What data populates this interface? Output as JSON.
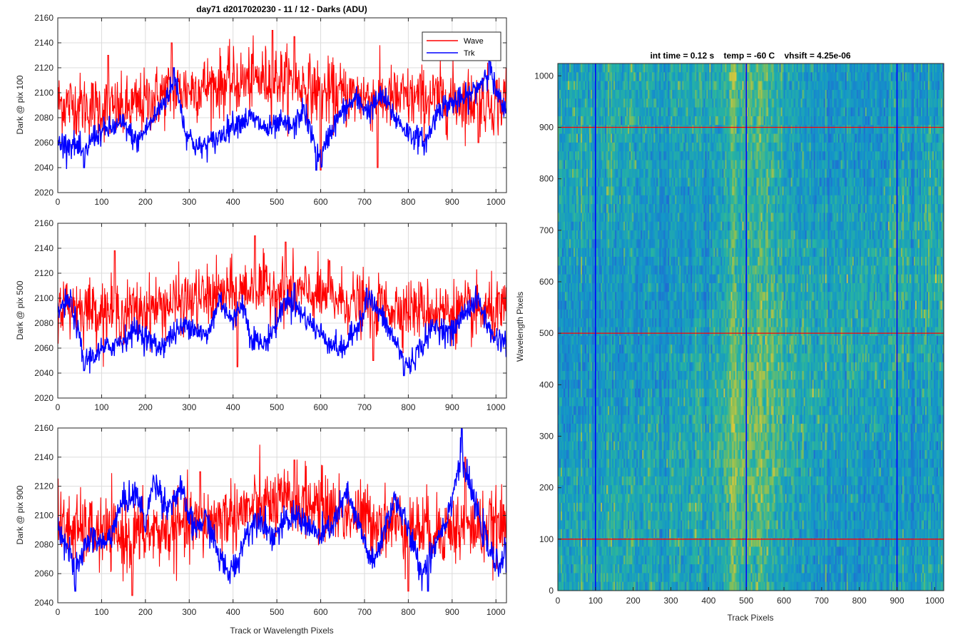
{
  "chart_data": [
    {
      "type": "line",
      "title": "day71 d2017020230 - 11 / 12 - Darks (ADU)",
      "xlabel": "",
      "ylabel": "Dark @ pix 100",
      "xlim": [
        0,
        1024
      ],
      "ylim": [
        2020,
        2160
      ],
      "xticks": [
        0,
        100,
        200,
        300,
        400,
        500,
        600,
        700,
        800,
        900,
        1000
      ],
      "yticks": [
        2020,
        2040,
        2060,
        2080,
        2100,
        2120,
        2140,
        2160
      ],
      "grid": true,
      "legend": {
        "position": "top-right",
        "entries": [
          "Wave",
          "Trk"
        ]
      },
      "series": [
        {
          "name": "Wave",
          "color": "#ff0000",
          "mean": 2100,
          "noise": 13,
          "trend": [
            [
              0,
              2092
            ],
            [
              150,
              2085
            ],
            [
              250,
              2100
            ],
            [
              350,
              2106
            ],
            [
              500,
              2112
            ],
            [
              600,
              2100
            ],
            [
              750,
              2095
            ],
            [
              900,
              2095
            ],
            [
              1024,
              2092
            ]
          ],
          "peaks": [
            [
              490,
              2150
            ],
            [
              540,
              2145
            ],
            [
              260,
              2140
            ],
            [
              1024,
              2120
            ],
            [
              115,
              2130
            ]
          ],
          "dips": [
            [
              600,
              2038
            ],
            [
              730,
              2040
            ],
            [
              960,
              2060
            ]
          ]
        },
        {
          "name": "Trk",
          "color": "#0000ff",
          "mean": 2075,
          "noise": 5,
          "trend": [
            [
              0,
              2060
            ],
            [
              40,
              2058
            ],
            [
              60,
              2050
            ],
            [
              80,
              2065
            ],
            [
              110,
              2070
            ],
            [
              150,
              2075
            ],
            [
              180,
              2060
            ],
            [
              220,
              2080
            ],
            [
              250,
              2098
            ],
            [
              270,
              2110
            ],
            [
              290,
              2070
            ],
            [
              320,
              2055
            ],
            [
              360,
              2062
            ],
            [
              400,
              2075
            ],
            [
              440,
              2080
            ],
            [
              480,
              2070
            ],
            [
              510,
              2075
            ],
            [
              540,
              2072
            ],
            [
              560,
              2088
            ],
            [
              580,
              2065
            ],
            [
              600,
              2045
            ],
            [
              620,
              2068
            ],
            [
              650,
              2085
            ],
            [
              680,
              2095
            ],
            [
              710,
              2085
            ],
            [
              740,
              2098
            ],
            [
              770,
              2080
            ],
            [
              800,
              2068
            ],
            [
              840,
              2060
            ],
            [
              870,
              2088
            ],
            [
              900,
              2092
            ],
            [
              930,
              2095
            ],
            [
              960,
              2105
            ],
            [
              985,
              2120
            ],
            [
              1000,
              2100
            ],
            [
              1024,
              2082
            ]
          ],
          "peaks": [
            [
              985,
              2130
            ],
            [
              265,
              2120
            ]
          ],
          "dips": [
            [
              590,
              2038
            ],
            [
              60,
              2040
            ]
          ]
        }
      ]
    },
    {
      "type": "line",
      "title": "",
      "xlabel": "",
      "ylabel": "Dark @ pix 500",
      "xlim": [
        0,
        1024
      ],
      "ylim": [
        2020,
        2160
      ],
      "xticks": [
        0,
        100,
        200,
        300,
        400,
        500,
        600,
        700,
        800,
        900,
        1000
      ],
      "yticks": [
        2020,
        2040,
        2060,
        2080,
        2100,
        2120,
        2140,
        2160
      ],
      "grid": true,
      "series": [
        {
          "name": "Wave",
          "color": "#ff0000",
          "mean": 2098,
          "noise": 12,
          "trend": [
            [
              0,
              2095
            ],
            [
              150,
              2088
            ],
            [
              300,
              2098
            ],
            [
              450,
              2108
            ],
            [
              550,
              2105
            ],
            [
              700,
              2095
            ],
            [
              850,
              2090
            ],
            [
              1024,
              2088
            ]
          ],
          "peaks": [
            [
              450,
              2150
            ],
            [
              520,
              2145
            ],
            [
              130,
              2138
            ],
            [
              620,
              2130
            ]
          ],
          "dips": [
            [
              410,
              2045
            ],
            [
              720,
              2050
            ]
          ]
        },
        {
          "name": "Trk",
          "color": "#0000ff",
          "mean": 2075,
          "noise": 5,
          "trend": [
            [
              0,
              2090
            ],
            [
              30,
              2098
            ],
            [
              60,
              2050
            ],
            [
              100,
              2058
            ],
            [
              140,
              2065
            ],
            [
              180,
              2075
            ],
            [
              230,
              2060
            ],
            [
              260,
              2070
            ],
            [
              300,
              2080
            ],
            [
              340,
              2068
            ],
            [
              370,
              2100
            ],
            [
              400,
              2080
            ],
            [
              420,
              2098
            ],
            [
              440,
              2070
            ],
            [
              470,
              2062
            ],
            [
              500,
              2080
            ],
            [
              520,
              2100
            ],
            [
              550,
              2090
            ],
            [
              590,
              2075
            ],
            [
              620,
              2065
            ],
            [
              650,
              2058
            ],
            [
              680,
              2075
            ],
            [
              710,
              2100
            ],
            [
              740,
              2085
            ],
            [
              770,
              2065
            ],
            [
              800,
              2045
            ],
            [
              830,
              2062
            ],
            [
              860,
              2078
            ],
            [
              900,
              2072
            ],
            [
              930,
              2090
            ],
            [
              960,
              2098
            ],
            [
              990,
              2070
            ],
            [
              1024,
              2065
            ]
          ],
          "peaks": [
            [
              540,
              2112
            ],
            [
              705,
              2108
            ]
          ],
          "dips": [
            [
              790,
              2038
            ],
            [
              60,
              2042
            ]
          ]
        }
      ]
    },
    {
      "type": "line",
      "title": "",
      "xlabel": "Track or Wavelength Pixels",
      "ylabel": "Dark @ pix 900",
      "xlim": [
        0,
        1024
      ],
      "ylim": [
        2040,
        2160
      ],
      "xticks": [
        0,
        100,
        200,
        300,
        400,
        500,
        600,
        700,
        800,
        900,
        1000
      ],
      "yticks": [
        2040,
        2060,
        2080,
        2100,
        2120,
        2140,
        2160
      ],
      "grid": true,
      "series": [
        {
          "name": "Wave",
          "color": "#ff0000",
          "mean": 2095,
          "noise": 12,
          "trend": [
            [
              0,
              2092
            ],
            [
              150,
              2085
            ],
            [
              300,
              2092
            ],
            [
              450,
              2105
            ],
            [
              550,
              2110
            ],
            [
              700,
              2098
            ],
            [
              850,
              2090
            ],
            [
              1024,
              2092
            ]
          ],
          "peaks": [
            [
              540,
              2138
            ],
            [
              930,
              2140
            ],
            [
              325,
              2130
            ],
            [
              0,
              2125
            ]
          ],
          "dips": [
            [
              170,
              2045
            ],
            [
              800,
              2048
            ]
          ]
        },
        {
          "name": "Trk",
          "color": "#0000ff",
          "mean": 2088,
          "noise": 5,
          "trend": [
            [
              0,
              2095
            ],
            [
              20,
              2080
            ],
            [
              40,
              2060
            ],
            [
              70,
              2085
            ],
            [
              110,
              2080
            ],
            [
              150,
              2110
            ],
            [
              180,
              2115
            ],
            [
              200,
              2095
            ],
            [
              220,
              2125
            ],
            [
              250,
              2105
            ],
            [
              280,
              2118
            ],
            [
              310,
              2090
            ],
            [
              340,
              2098
            ],
            [
              370,
              2070
            ],
            [
              390,
              2060
            ],
            [
              410,
              2068
            ],
            [
              430,
              2088
            ],
            [
              460,
              2100
            ],
            [
              490,
              2085
            ],
            [
              520,
              2095
            ],
            [
              550,
              2100
            ],
            [
              580,
              2090
            ],
            [
              600,
              2085
            ],
            [
              630,
              2095
            ],
            [
              660,
              2115
            ],
            [
              690,
              2090
            ],
            [
              720,
              2065
            ],
            [
              750,
              2095
            ],
            [
              770,
              2112
            ],
            [
              800,
              2090
            ],
            [
              830,
              2060
            ],
            [
              860,
              2080
            ],
            [
              890,
              2100
            ],
            [
              920,
              2140
            ],
            [
              940,
              2120
            ],
            [
              960,
              2100
            ],
            [
              980,
              2080
            ],
            [
              1000,
              2065
            ],
            [
              1024,
              2075
            ]
          ],
          "peaks": [
            [
              922,
              2160
            ]
          ],
          "dips": [
            [
              845,
              2048
            ],
            [
              40,
              2048
            ]
          ]
        }
      ]
    },
    {
      "type": "heatmap",
      "title": "int time = 0.12 s    temp = -60 C    vhsift = 4.25e-06",
      "xlabel": "Track Pixels",
      "ylabel": "Wavelength Pixels",
      "xlim": [
        0,
        1024
      ],
      "ylim": [
        0,
        1024
      ],
      "xticks": [
        0,
        100,
        200,
        300,
        400,
        500,
        600,
        700,
        800,
        900,
        1000
      ],
      "yticks": [
        0,
        100,
        200,
        300,
        400,
        500,
        600,
        700,
        800,
        900,
        1000
      ],
      "colormap": "parula",
      "vertical_markers": {
        "color": "#0000ff",
        "values": [
          100,
          500,
          900
        ]
      },
      "horizontal_markers": {
        "color": "#ff0000",
        "values": [
          100,
          500,
          900
        ]
      },
      "bright_band": [
        [
          400,
          0.15
        ],
        [
          450,
          0.75
        ],
        [
          480,
          1.0
        ],
        [
          520,
          0.9
        ],
        [
          560,
          0.95
        ],
        [
          600,
          0.5
        ],
        [
          650,
          0.2
        ]
      ]
    }
  ]
}
